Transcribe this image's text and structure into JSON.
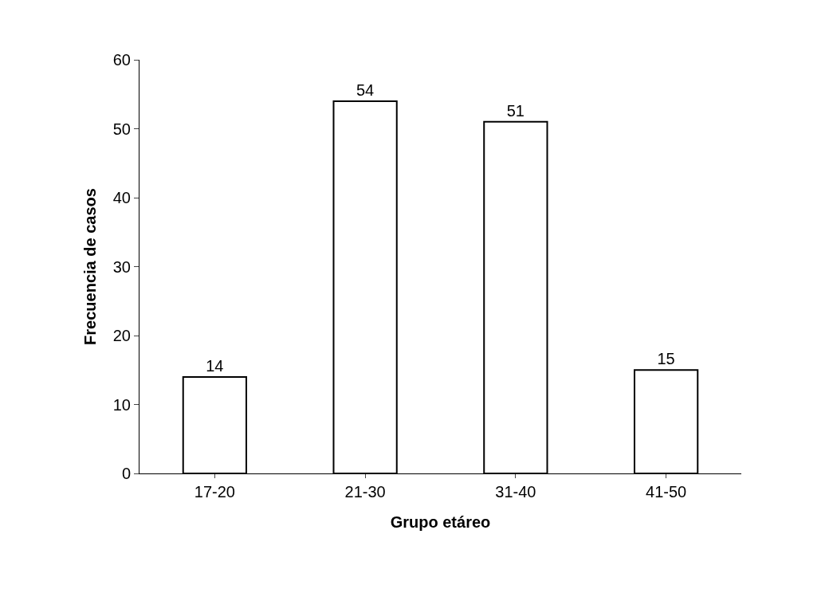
{
  "chart_data": {
    "type": "bar",
    "xlabel": "Grupo etáreo",
    "ylabel": "Frecuencia de casos",
    "categories": [
      "17-20",
      "21-30",
      "31-40",
      "41-50"
    ],
    "values": [
      14,
      54,
      51,
      15
    ],
    "color": "#ffffff",
    "ylim": [
      0,
      60
    ],
    "yticks": [
      0,
      10,
      20,
      30,
      40,
      50,
      60
    ],
    "data_labels": true,
    "grid": false
  }
}
